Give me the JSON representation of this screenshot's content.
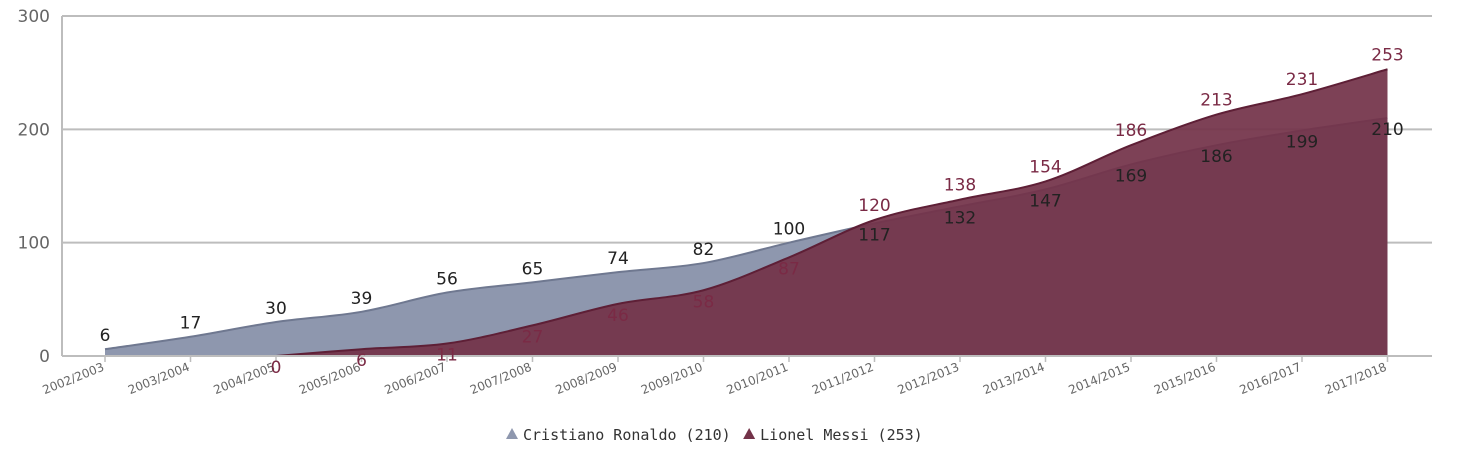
{
  "chart_data": {
    "type": "area",
    "categories": [
      "2002/2003",
      "2003/2004",
      "2004/2005",
      "2005/2006",
      "2006/2007",
      "2007/2008",
      "2008/2009",
      "2009/2010",
      "2010/2011",
      "2011/2012",
      "2012/2013",
      "2013/2014",
      "2014/2015",
      "2015/2016",
      "2016/2017",
      "2017/2018"
    ],
    "series": [
      {
        "name": "Cristiano Ronaldo (210)",
        "color": "#8e97ae",
        "values": [
          6,
          17,
          30,
          39,
          56,
          65,
          74,
          82,
          100,
          117,
          132,
          147,
          169,
          186,
          199,
          210
        ],
        "labels": [
          "6",
          "17",
          "30",
          "39",
          "56",
          "65",
          "74",
          "82",
          "100",
          "117",
          "132",
          "147",
          "169",
          "186",
          "199",
          "210"
        ]
      },
      {
        "name": "Lionel Messi (253)",
        "color": "#733349",
        "values": [
          null,
          null,
          0,
          6,
          11,
          27,
          46,
          58,
          87,
          120,
          138,
          154,
          186,
          213,
          231,
          253
        ],
        "labels": [
          "",
          "",
          "0",
          "6",
          "11",
          "27",
          "46",
          "58",
          "87",
          "120",
          "138",
          "154",
          "186",
          "213",
          "231",
          "253"
        ]
      }
    ],
    "ylim": [
      0,
      300
    ],
    "yticks": [
      "0",
      "100",
      "200",
      "300"
    ],
    "ytick_values": [
      0,
      100,
      200,
      300
    ],
    "grid": true,
    "legend": "bottom-center"
  }
}
